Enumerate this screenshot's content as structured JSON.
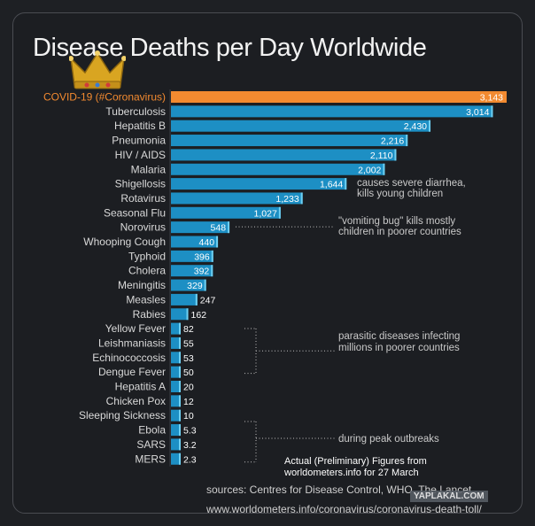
{
  "chart_data": {
    "type": "bar",
    "orientation": "horizontal",
    "title": "Disease Deaths per Day Worldwide",
    "categories": [
      "COVID-19 (#Coronavirus)",
      "Tuberculosis",
      "Hepatitis B",
      "Pneumonia",
      "HIV / AIDS",
      "Malaria",
      "Shigellosis",
      "Rotavirus",
      "Seasonal Flu",
      "Norovirus",
      "Whooping Cough",
      "Typhoid",
      "Cholera",
      "Meningitis",
      "Measles",
      "Rabies",
      "Yellow Fever",
      "Leishmaniasis",
      "Echinococcosis",
      "Dengue Fever",
      "Hepatitis A",
      "Chicken Pox",
      "Sleeping Sickness",
      "Ebola",
      "SARS",
      "MERS"
    ],
    "values": [
      3143,
      3014,
      2430,
      2216,
      2110,
      2002,
      1644,
      1233,
      1027,
      548,
      440,
      396,
      392,
      329,
      247,
      162,
      82,
      55,
      53,
      50,
      20,
      12,
      10,
      5.3,
      3.2,
      2.3
    ],
    "value_labels": [
      "3,143",
      "3,014",
      "2,430",
      "2,216",
      "2,110",
      "2,002",
      "1,644",
      "1,233",
      "1,027",
      "548",
      "440",
      "396",
      "392",
      "329",
      "247",
      "162",
      "82",
      "55",
      "53",
      "50",
      "20",
      "12",
      "10",
      "5.3",
      "3.2",
      "2.3"
    ],
    "colors": {
      "highlight": "#f28a30",
      "bar": "#1d8fc4",
      "bar_edge": "#6fd0f2",
      "label": "#d9d9d9",
      "highlight_label": "#f28a30"
    },
    "annotations": [
      {
        "category": "Shigellosis",
        "text": [
          "causes severe diarrhea,",
          "kills young children"
        ]
      },
      {
        "category": "Norovirus",
        "text": [
          "\"vomiting bug\" kills mostly",
          "children in poorer countries"
        ]
      },
      {
        "category": "Leishmaniasis",
        "text": [
          "parasitic diseases infecting",
          "millions in poorer countries"
        ]
      },
      {
        "category": "Ebola",
        "text": [
          "during peak outbreaks"
        ]
      }
    ]
  },
  "footer": {
    "sources": "sources: Centres for Disease Control, WHO, The Lancet",
    "url": "www.worldometers.info/coronavirus/coronavirus-death-toll/"
  },
  "overlay_note": {
    "line1": "Actual (Preliminary) Figures from",
    "line2": "worldometers.info for 27 March"
  },
  "watermark": "YAPLAKAL.COM",
  "crown_icon": "crown-icon"
}
